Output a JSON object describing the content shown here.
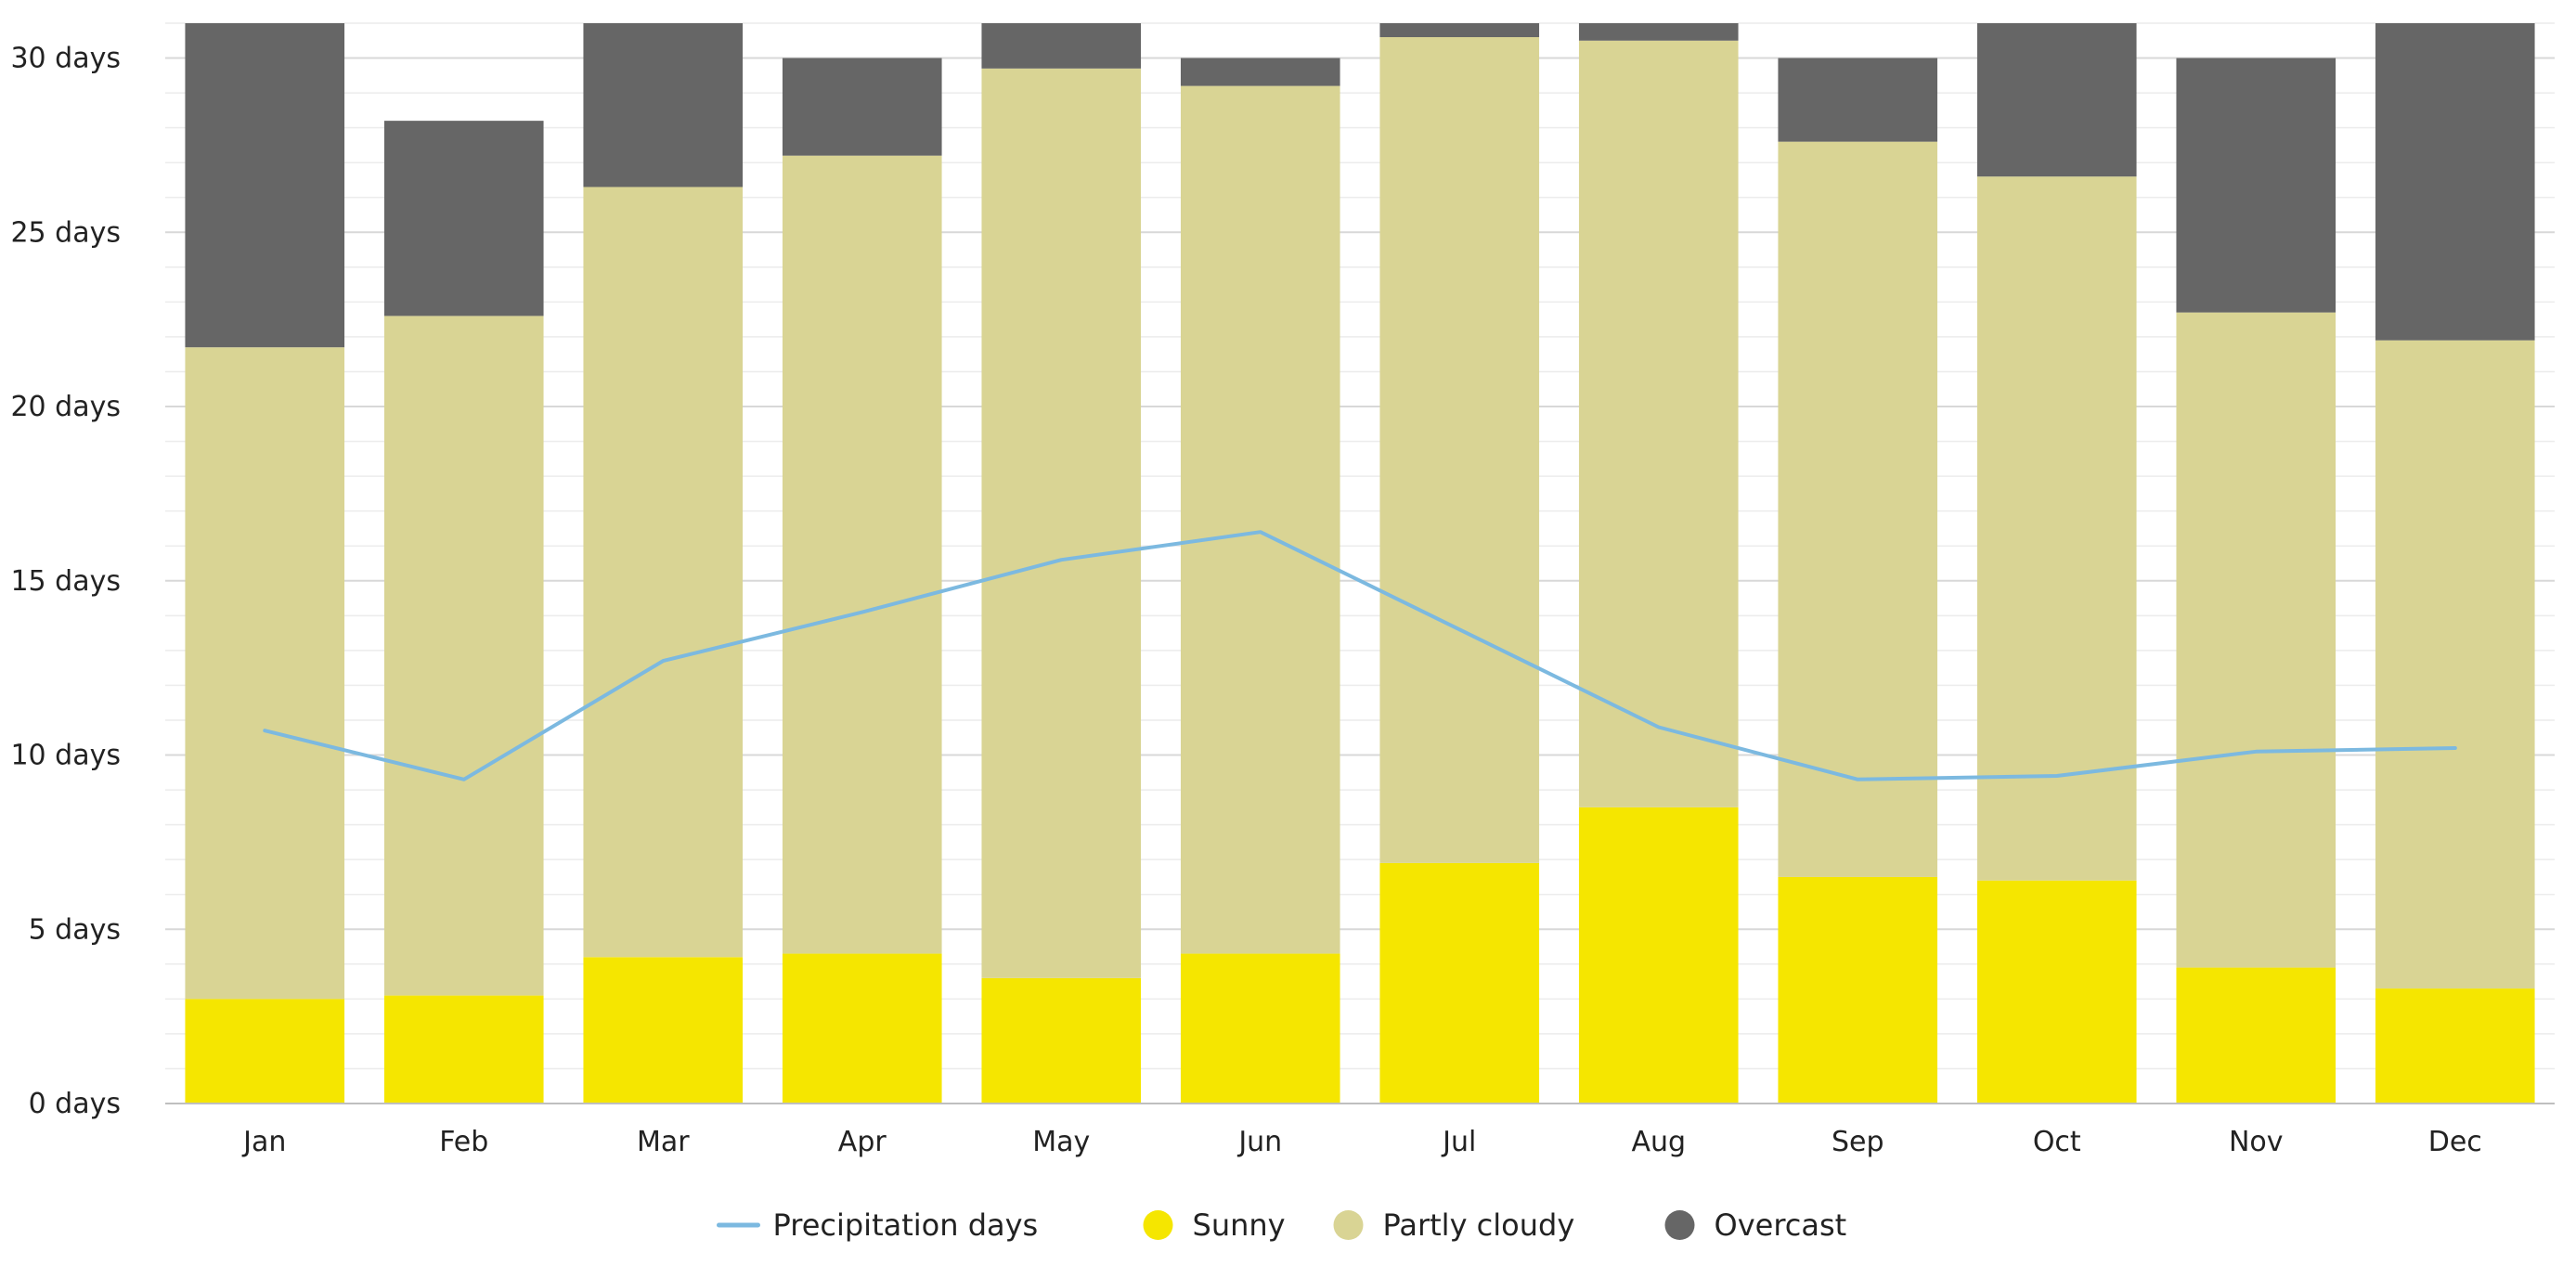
{
  "chart_data": {
    "type": "bar",
    "stacked": true,
    "title": "",
    "xlabel": "",
    "ylabel": "",
    "ylim": [
      0,
      31
    ],
    "y_tick_values": [
      0,
      5,
      10,
      15,
      20,
      25,
      30
    ],
    "y_tick_labels": [
      "0 days",
      "5 days",
      "10 days",
      "15 days",
      "20 days",
      "25 days",
      "30 days"
    ],
    "categories": [
      "Jan",
      "Feb",
      "Mar",
      "Apr",
      "May",
      "Jun",
      "Jul",
      "Aug",
      "Sep",
      "Oct",
      "Nov",
      "Dec"
    ],
    "series": [
      {
        "name": "Sunny",
        "kind": "bar",
        "color": "#f5e600",
        "values": [
          3.0,
          3.1,
          4.2,
          4.3,
          3.6,
          4.3,
          6.9,
          8.5,
          6.5,
          6.4,
          3.9,
          3.3
        ]
      },
      {
        "name": "Partly cloudy",
        "kind": "bar",
        "color": "#d9d494",
        "values": [
          18.7,
          19.5,
          22.1,
          22.9,
          26.1,
          24.9,
          23.7,
          22.0,
          21.1,
          20.2,
          18.8,
          18.6
        ]
      },
      {
        "name": "Overcast",
        "kind": "bar",
        "color": "#666666",
        "values": [
          9.3,
          5.6,
          4.7,
          2.8,
          1.3,
          0.8,
          0.4,
          0.5,
          2.4,
          4.4,
          7.3,
          9.1
        ]
      },
      {
        "name": "Precipitation days",
        "kind": "line",
        "color": "#7cb9e0",
        "values": [
          10.7,
          9.3,
          12.7,
          14.1,
          15.6,
          16.4,
          13.6,
          10.8,
          9.3,
          9.4,
          10.1,
          10.2
        ]
      }
    ],
    "legend": {
      "position": "bottom-center",
      "order": [
        "Precipitation days",
        "Sunny",
        "Partly cloudy",
        "Overcast"
      ]
    },
    "grid": true
  }
}
